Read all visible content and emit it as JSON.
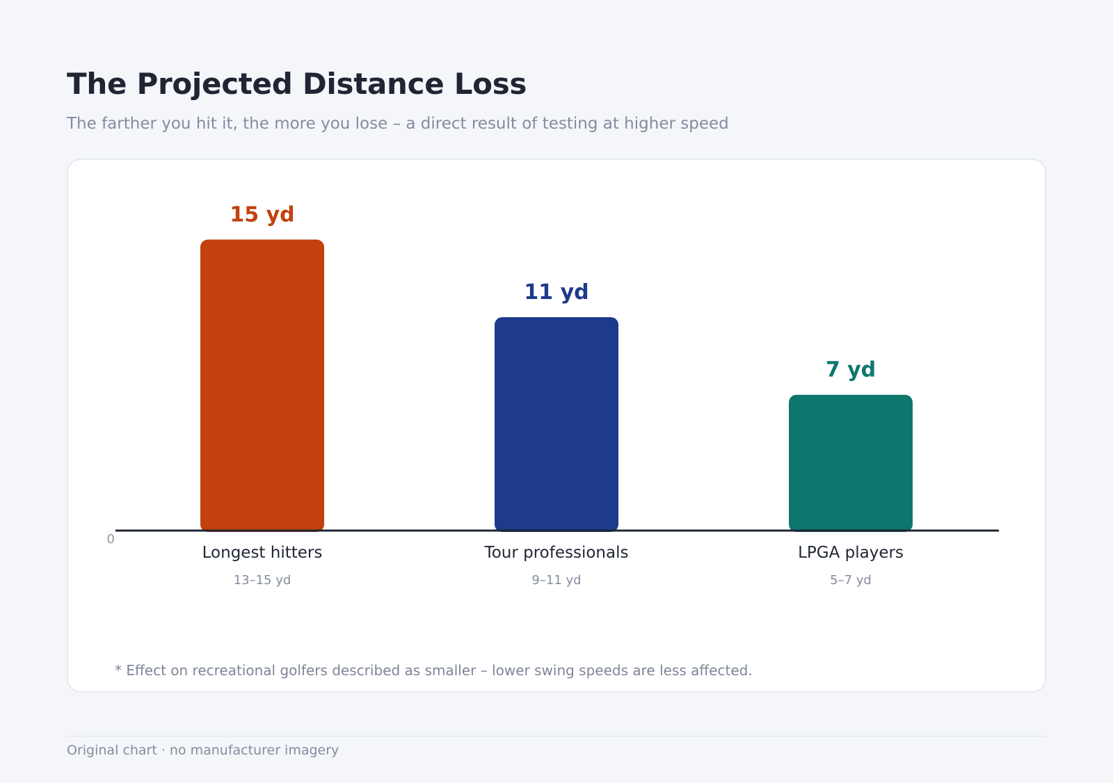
{
  "header": {
    "title": "The Projected Distance Loss",
    "subtitle": "The farther you hit it, the more you lose – a direct result of testing at higher speed"
  },
  "chart_data": {
    "type": "bar",
    "title": "The Projected Distance Loss",
    "subtitle": "The farther you hit it, the more you lose – a direct result of testing at higher speed",
    "categories": [
      "Longest hitters",
      "Tour professionals",
      "LPGA players"
    ],
    "values": [
      15,
      11,
      7
    ],
    "value_labels": [
      "15 yd",
      "11 yd",
      "7 yd"
    ],
    "ranges": [
      "13–15 yd",
      "9–11 yd",
      "5–7 yd"
    ],
    "colors": [
      "#c2410c",
      "#1e3a8a",
      "#0f766e"
    ],
    "unit": "yd",
    "ylim": [
      0,
      16
    ],
    "y_ticks": [
      "0"
    ],
    "grid": false,
    "legend": "none"
  },
  "footnote": "* Effect on recreational golfers described as smaller – lower swing speeds are less affected.",
  "footer": "Original chart · no manufacturer imagery"
}
